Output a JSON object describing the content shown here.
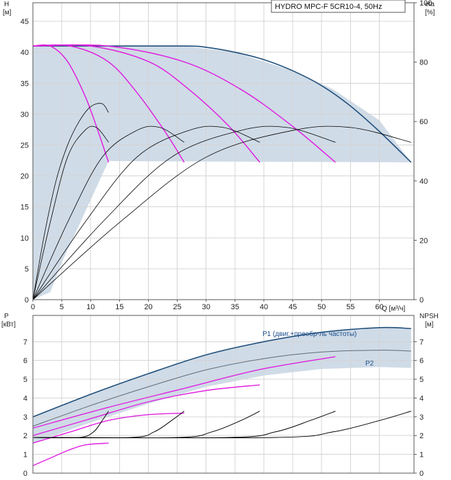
{
  "chart_data": [
    {
      "type": "line",
      "title": "HYDRO MPC-F 5CR10-4, 50Hz",
      "ylabel_left": "H",
      "ylabel_left_unit": "[м]",
      "ylabel_right": "eta",
      "ylabel_right_unit": "[%]",
      "xlabel": "Q [м³/ч]",
      "xlim": [
        0,
        66
      ],
      "ylim_left": [
        0,
        48
      ],
      "ylim_right": [
        0,
        100
      ],
      "x_ticks": [
        0,
        5,
        10,
        15,
        20,
        25,
        30,
        35,
        40,
        45,
        50,
        55,
        60
      ],
      "y_ticks_left": [
        0,
        5,
        10,
        15,
        20,
        25,
        30,
        35,
        40,
        45
      ],
      "y_ticks_right": [
        0,
        20,
        40,
        60,
        80,
        100
      ],
      "grid": true,
      "operating_area": {
        "upper": [
          [
            0,
            41
          ],
          [
            13.1,
            41
          ],
          [
            26.2,
            41
          ],
          [
            35,
            40
          ],
          [
            45,
            37
          ],
          [
            52,
            34
          ],
          [
            60,
            29
          ],
          [
            65.5,
            22.2
          ]
        ],
        "lower": [
          [
            65.5,
            22.2
          ],
          [
            13.1,
            22.4
          ],
          [
            5,
            6
          ],
          [
            3,
            1.2
          ],
          [
            0,
            0
          ]
        ]
      },
      "series": [
        {
          "color": "#1f4e7a",
          "x": [
            0,
            13.1,
            26.2,
            30,
            35,
            40,
            45,
            50,
            55,
            60,
            65.5
          ],
          "y": [
            41,
            41,
            41,
            40.8,
            40,
            38.8,
            37,
            34.6,
            31.3,
            27.2,
            22.2
          ]
        },
        {
          "color": "#e020e0",
          "x": [
            0,
            3,
            6,
            9,
            11,
            13.1
          ],
          "y": [
            41,
            41,
            38.5,
            33,
            28,
            22.2
          ]
        },
        {
          "color": "#e020e0",
          "x": [
            0,
            6.5,
            13,
            18,
            23,
            26.2
          ],
          "y": [
            41,
            41,
            38.5,
            33.5,
            27,
            22.2
          ]
        },
        {
          "color": "#e020e0",
          "x": [
            0,
            10,
            20,
            27,
            34,
            39.3
          ],
          "y": [
            41,
            41,
            38.5,
            34,
            28,
            22.2
          ]
        },
        {
          "color": "#e020e0",
          "x": [
            0,
            13,
            26,
            36,
            45,
            52.4
          ],
          "y": [
            41,
            41,
            38.5,
            34,
            28,
            22.2
          ]
        },
        {
          "color": "#000000",
          "x": [
            0,
            3,
            6,
            9,
            11,
            13.1
          ],
          "y": [
            0,
            26,
            48,
            57,
            58,
            53
          ]
        },
        {
          "color": "#000000",
          "x": [
            0,
            6,
            12,
            18,
            22,
            26.2
          ],
          "y": [
            0,
            26,
            48,
            57,
            58,
            53
          ]
        },
        {
          "color": "#000000",
          "x": [
            0,
            9,
            18,
            27,
            33,
            39.3
          ],
          "y": [
            0,
            26,
            48,
            57,
            58,
            53
          ]
        },
        {
          "color": "#000000",
          "x": [
            0,
            12,
            24,
            36,
            44,
            52.4
          ],
          "y": [
            0,
            26,
            48,
            57,
            58,
            53
          ]
        },
        {
          "color": "#000000",
          "x": [
            0,
            15,
            30,
            45,
            55,
            65.5
          ],
          "y": [
            0,
            26,
            48,
            57,
            58,
            53
          ]
        },
        {
          "color": "#000000",
          "x": [
            0,
            2,
            4,
            6,
            8,
            10,
            12,
            13.1
          ],
          "y": [
            0,
            22,
            40,
            52,
            60,
            65,
            66,
            63
          ]
        }
      ]
    },
    {
      "type": "line",
      "ylabel_left": "P",
      "ylabel_left_unit": "[кВт]",
      "ylabel_right": "NPSH",
      "ylabel_right_unit": "[м]",
      "xlim": [
        0,
        66
      ],
      "ylim_left": [
        0,
        8.4
      ],
      "ylim_right": [
        0,
        8.4
      ],
      "y_ticks_left": [
        0,
        1,
        2,
        3,
        4,
        5,
        6,
        7
      ],
      "y_ticks_right": [
        0,
        1,
        2,
        3,
        4,
        5,
        6,
        7
      ],
      "grid": true,
      "curve_labels": [
        {
          "text": "P1 (двиг.+преобр-ль частоты)",
          "x": 44.5,
          "y": 7.85
        },
        {
          "text": "P2",
          "x": 63.2,
          "y": 6.1
        }
      ],
      "series": [
        {
          "name": "P1 (двиг.+преобр-ль частоты)",
          "color": "#1f4e7a",
          "x": [
            0,
            10,
            20,
            30,
            40,
            50,
            60,
            65.5
          ],
          "y": [
            3.0,
            4.2,
            5.3,
            6.3,
            7.0,
            7.5,
            7.75,
            7.7
          ]
        },
        {
          "name": "P2",
          "color": "#606a78",
          "x": [
            0,
            10,
            20,
            30,
            40,
            50,
            60,
            65.5
          ],
          "y": [
            2.5,
            3.6,
            4.6,
            5.5,
            6.1,
            6.45,
            6.55,
            6.5
          ]
        },
        {
          "color": "#e020e0",
          "x": [
            0,
            13,
            26,
            39,
            52.4
          ],
          "y": [
            2.4,
            3.5,
            4.5,
            5.5,
            6.2
          ]
        },
        {
          "color": "#e020e0",
          "x": [
            0,
            10,
            20,
            30,
            39.3
          ],
          "y": [
            2.0,
            2.9,
            3.8,
            4.4,
            4.7
          ]
        },
        {
          "color": "#e020e0",
          "x": [
            0,
            6.5,
            13,
            19.5,
            26.2
          ],
          "y": [
            1.6,
            2.2,
            2.8,
            3.1,
            3.2
          ]
        },
        {
          "color": "#e020e0",
          "x": [
            0,
            3,
            6,
            9,
            13.1
          ],
          "y": [
            0.4,
            0.8,
            1.2,
            1.5,
            1.6
          ]
        },
        {
          "color": "#000000",
          "x": [
            0,
            8,
            10.5,
            12,
            13.1
          ],
          "y": [
            1.9,
            1.9,
            2.2,
            2.8,
            3.3
          ]
        },
        {
          "color": "#000000",
          "x": [
            0,
            17,
            21,
            24,
            26.2
          ],
          "y": [
            1.9,
            1.9,
            2.2,
            2.8,
            3.3
          ]
        },
        {
          "color": "#000000",
          "x": [
            0,
            25,
            31,
            36,
            39.3
          ],
          "y": [
            1.9,
            1.9,
            2.2,
            2.8,
            3.3
          ]
        },
        {
          "color": "#000000",
          "x": [
            0,
            34,
            42,
            48,
            52.4
          ],
          "y": [
            1.9,
            1.9,
            2.2,
            2.8,
            3.3
          ]
        },
        {
          "color": "#000000",
          "x": [
            0,
            42,
            52,
            60,
            65.5
          ],
          "y": [
            1.9,
            1.9,
            2.2,
            2.8,
            3.3
          ]
        }
      ]
    }
  ]
}
